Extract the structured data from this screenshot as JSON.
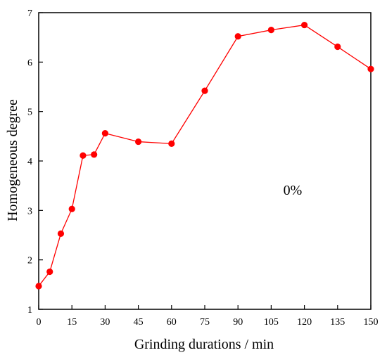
{
  "chart_data": {
    "type": "line",
    "title": "",
    "xlabel": "Grinding durations / min",
    "ylabel": "Homogeneous degree",
    "annotation": "0%",
    "xlim": [
      0,
      150
    ],
    "ylim": [
      1,
      7
    ],
    "xticks": [
      0,
      15,
      30,
      45,
      60,
      75,
      90,
      105,
      120,
      135,
      150
    ],
    "xtick_labels": [
      "0",
      "15",
      "30",
      "45",
      "60",
      "75",
      "90",
      "105",
      "120",
      "135",
      "150"
    ],
    "yticks": [
      1,
      2,
      3,
      4,
      5,
      6,
      7
    ],
    "ytick_labels": [
      "1",
      "2",
      "3",
      "4",
      "5",
      "6",
      "7"
    ],
    "grid": false,
    "series": [
      {
        "color": "#ff0000",
        "marker": "circle",
        "x": [
          0,
          5,
          10,
          15,
          20,
          25,
          30,
          45,
          60,
          75,
          90,
          105,
          120,
          135,
          150
        ],
        "y": [
          1.47,
          1.76,
          2.53,
          3.03,
          4.11,
          4.13,
          4.56,
          4.39,
          4.35,
          5.42,
          6.52,
          6.65,
          6.75,
          6.31,
          5.86
        ]
      }
    ]
  }
}
